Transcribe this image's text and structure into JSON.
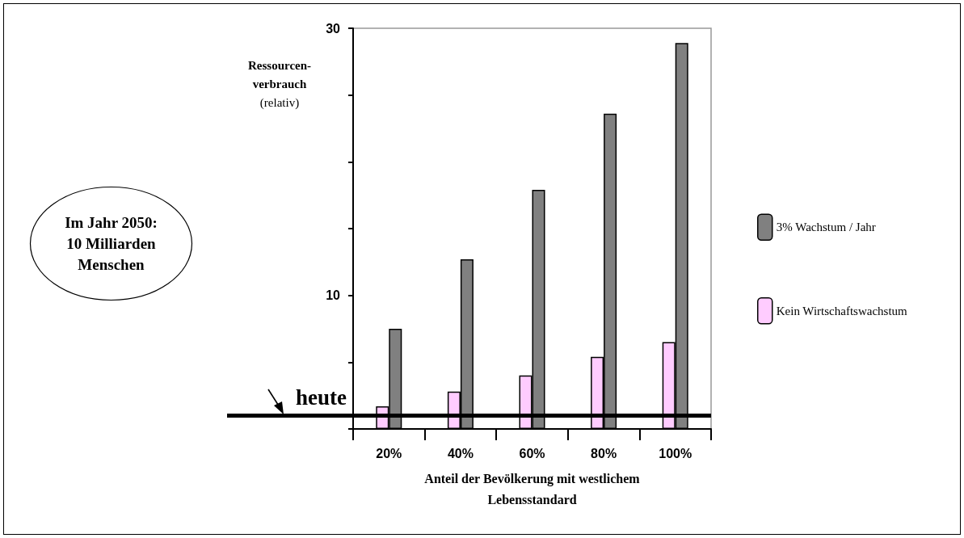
{
  "chart_data": {
    "type": "bar",
    "ylabel": "Ressourcen-\nverbrauch\n(relativ)",
    "xlabel": "Anteil der Bevölkerung mit westlichem\nLebensstandard",
    "categories": [
      "20%",
      "40%",
      "60%",
      "80%",
      "100%"
    ],
    "series": [
      {
        "name": "Kein Wirtschaftswachstum",
        "color": "#ffccff",
        "values": [
          1.7,
          2.8,
          4,
          5.4,
          6.5
        ]
      },
      {
        "name": "3% Wachstum / Jahr",
        "color": "#808080",
        "values": [
          7.5,
          12.7,
          17.9,
          23.6,
          28.9
        ]
      }
    ],
    "ylim": [
      0,
      30
    ],
    "yticks": [
      {
        "value": 0,
        "label": null
      },
      {
        "value": 5,
        "label": null
      },
      10,
      {
        "value": 15,
        "label": null
      },
      {
        "value": 20,
        "label": null
      },
      {
        "value": 25,
        "label": null
      },
      30
    ],
    "ref_lines": [
      {
        "axis": "y",
        "value": 1,
        "label": "heute",
        "color": "#000000"
      }
    ],
    "annotations": [
      "Im Jahr 2050:\n10 Milliarden\nMenschen"
    ],
    "legend": "right",
    "grid": false
  }
}
